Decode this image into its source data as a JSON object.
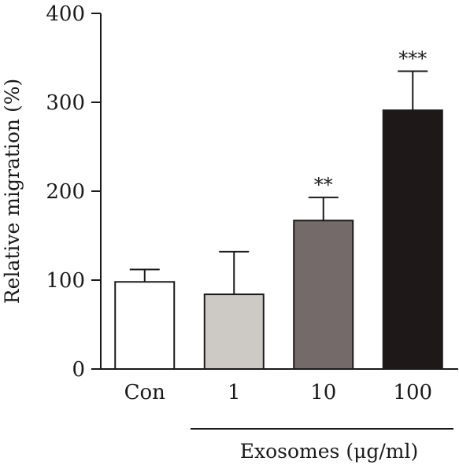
{
  "chart_data": {
    "type": "bar",
    "categories": [
      "Con",
      "1",
      "10",
      "100"
    ],
    "values": [
      98,
      84,
      167,
      291
    ],
    "error_upper": [
      112,
      132,
      193,
      335
    ],
    "significance": [
      "",
      "",
      "**",
      "***"
    ],
    "bar_colors": [
      "#ffffff",
      "#cdcac6",
      "#746a6a",
      "#1e1819"
    ],
    "ylabel": "Relative migration (%)",
    "group_label": "Exosomes (μg/ml)",
    "yticks": [
      0,
      100,
      200,
      300,
      400
    ],
    "ylim": [
      0,
      400
    ],
    "grid": false
  }
}
